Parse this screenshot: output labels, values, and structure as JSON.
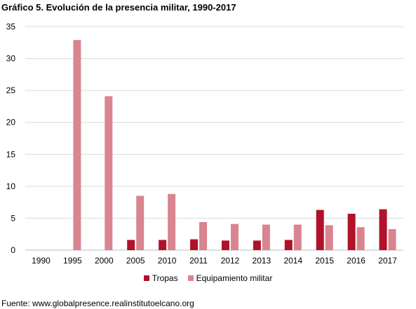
{
  "title": "Gráfico 5. Evolución de la presencia militar, 1990-2017",
  "source": "Fuente: www.globalpresence.realinstitutoelcano.org",
  "colors": {
    "tropas": "#b0122a",
    "equipamiento": "#d9848f",
    "grid": "#d9d9d9",
    "axis": "#bfbfbf"
  },
  "chart_data": {
    "type": "bar",
    "categories": [
      "1990",
      "1995",
      "2000",
      "2005",
      "2010",
      "2011",
      "2012",
      "2013",
      "2014",
      "2015",
      "2016",
      "2017"
    ],
    "series": [
      {
        "name": "Tropas",
        "values": [
          0,
          0,
          0,
          1.6,
          1.6,
          1.7,
          1.5,
          1.5,
          1.6,
          6.3,
          5.7,
          6.4
        ]
      },
      {
        "name": "Equipamiento militar",
        "values": [
          0,
          32.9,
          24.1,
          8.5,
          8.8,
          4.4,
          4.1,
          4.0,
          4.0,
          3.9,
          3.6,
          3.3
        ]
      }
    ],
    "ylim": [
      0,
      35
    ],
    "yticks": [
      "0",
      "5",
      "10",
      "15",
      "20",
      "25",
      "30",
      "35"
    ],
    "grid": true,
    "legend_position": "bottom"
  }
}
